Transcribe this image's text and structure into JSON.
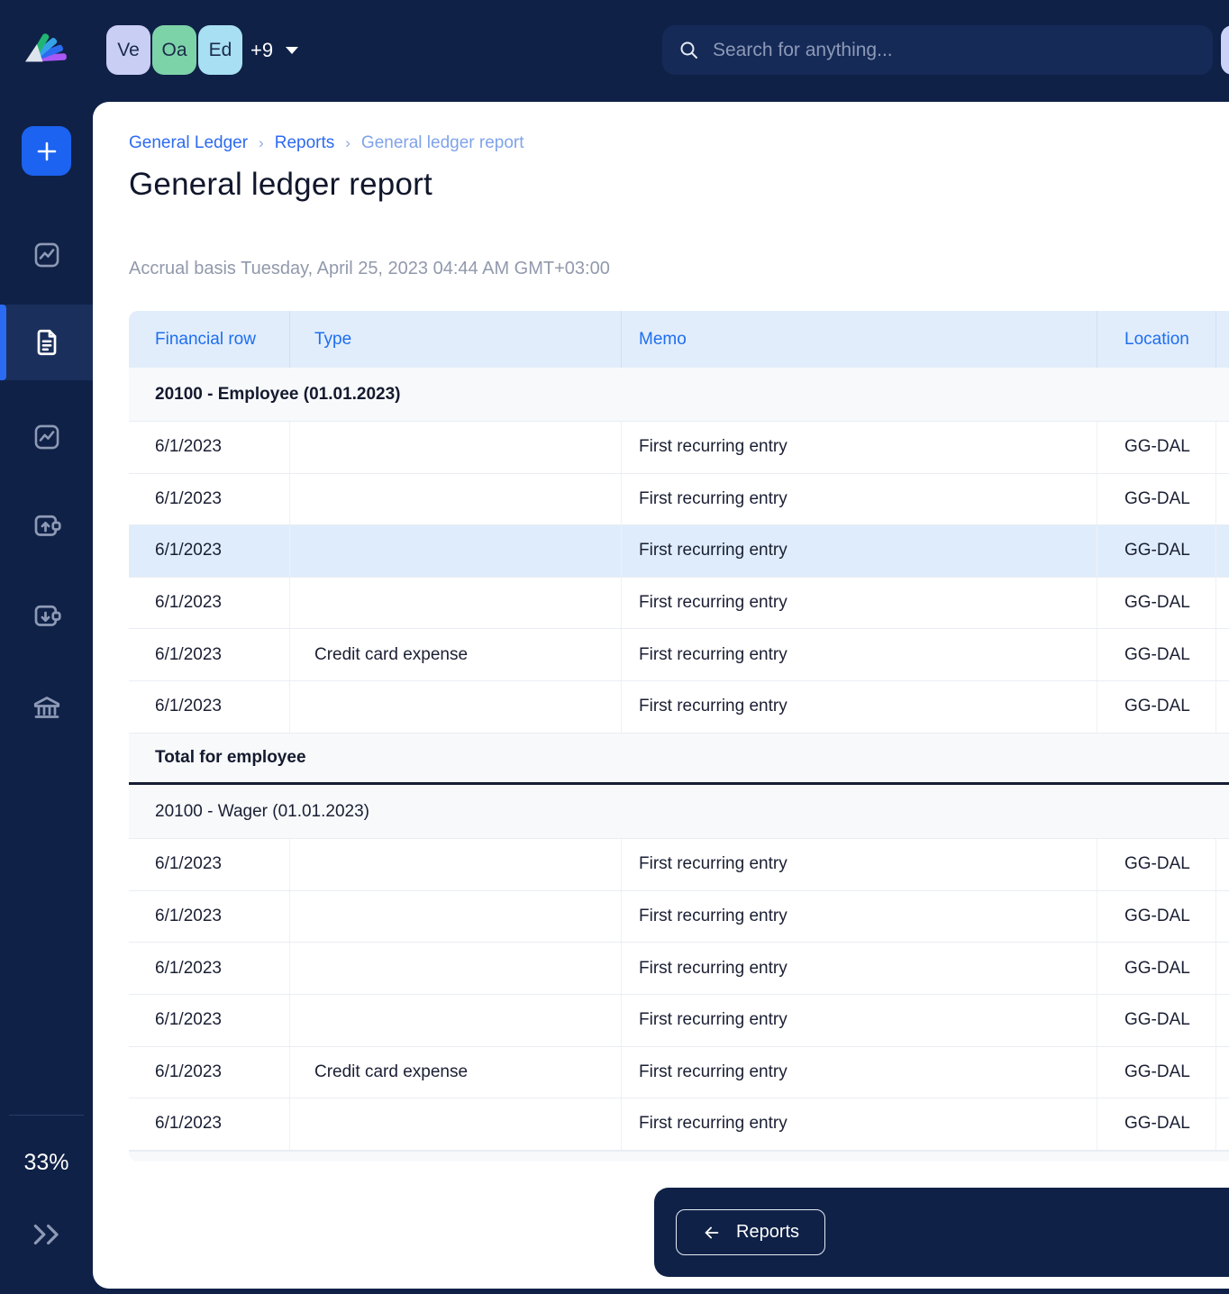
{
  "topbar": {
    "workspaces": [
      {
        "label": "Ve",
        "color": "#C9CEF5"
      },
      {
        "label": "Oa",
        "color": "#7DD3A8"
      },
      {
        "label": "Ed",
        "color": "#A8DFF2"
      }
    ],
    "more_label": "+9",
    "search_placeholder": "Search for anything..."
  },
  "sidebar": {
    "zoom_label": "33%"
  },
  "breadcrumb": [
    "General Ledger",
    "Reports",
    "General ledger report"
  ],
  "page": {
    "title": "General ledger report",
    "subtitle": "Accrual basis Tuesday, April 25, 2023 04:44 AM GMT+03:00"
  },
  "table": {
    "columns": [
      "Financial row",
      "Type",
      "Memo",
      "Location"
    ],
    "rows": [
      {
        "kind": "section",
        "bold": true,
        "cells": [
          "20100 - Employee (01.01.2023)",
          "",
          "",
          ""
        ]
      },
      {
        "kind": "data",
        "cells": [
          "6/1/2023",
          "",
          "First recurring entry",
          "GG-DAL"
        ]
      },
      {
        "kind": "data",
        "cells": [
          "6/1/2023",
          "",
          "First recurring entry",
          "GG-DAL"
        ]
      },
      {
        "kind": "data",
        "highlight": true,
        "cells": [
          "6/1/2023",
          "",
          "First recurring entry",
          "GG-DAL"
        ]
      },
      {
        "kind": "data",
        "cells": [
          "6/1/2023",
          "",
          "First recurring entry",
          "GG-DAL"
        ]
      },
      {
        "kind": "data",
        "cells": [
          "6/1/2023",
          "Credit card expense",
          "First recurring entry",
          "GG-DAL"
        ]
      },
      {
        "kind": "data",
        "cells": [
          "6/1/2023",
          "",
          "First recurring entry",
          "GG-DAL"
        ]
      },
      {
        "kind": "total",
        "bold": true,
        "cells": [
          "Total for employee",
          "",
          "",
          ""
        ]
      },
      {
        "kind": "section",
        "bold": false,
        "cells": [
          "20100 - Wager (01.01.2023)",
          "",
          "",
          ""
        ]
      },
      {
        "kind": "data",
        "cells": [
          "6/1/2023",
          "",
          "First recurring entry",
          "GG-DAL"
        ]
      },
      {
        "kind": "data",
        "cells": [
          "6/1/2023",
          "",
          "First recurring entry",
          "GG-DAL"
        ]
      },
      {
        "kind": "data",
        "cells": [
          "6/1/2023",
          "",
          "First recurring entry",
          "GG-DAL"
        ]
      },
      {
        "kind": "data",
        "cells": [
          "6/1/2023",
          "",
          "First recurring entry",
          "GG-DAL"
        ]
      },
      {
        "kind": "data",
        "cells": [
          "6/1/2023",
          "Credit card expense",
          "First recurring entry",
          "GG-DAL"
        ]
      },
      {
        "kind": "data",
        "cells": [
          "6/1/2023",
          "",
          "First recurring entry",
          "GG-DAL"
        ]
      }
    ]
  },
  "footer": {
    "back_label": "Reports"
  },
  "colors": {
    "shell_navy": "#0F2147",
    "accent_blue": "#1B63F0",
    "header_bg": "#E2EDFB",
    "header_text": "#1D6EF0",
    "row_highlight": "#DFECFB",
    "section_bg": "#F7F9FB"
  }
}
